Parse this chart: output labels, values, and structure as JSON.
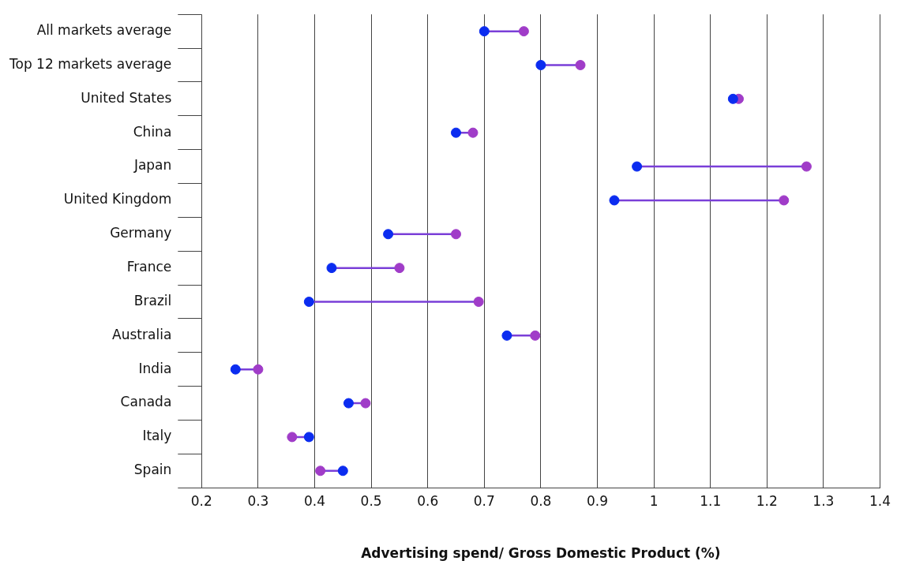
{
  "chart_data": {
    "type": "scatter",
    "orientation": "horizontal",
    "xlabel": "Advertising spend/ Gross Domestic Product (%)",
    "categories": [
      "All markets average",
      "Top 12 markets average",
      "United States",
      "China",
      "Japan",
      "United Kingdom",
      "Germany",
      "France",
      "Brazil",
      "Australia",
      "India",
      "Canada",
      "Italy",
      "Spain"
    ],
    "series": [
      {
        "color": "#0b2cf0",
        "values": [
          0.7,
          0.8,
          1.14,
          0.65,
          0.97,
          0.93,
          0.53,
          0.43,
          0.39,
          0.74,
          0.26,
          0.46,
          0.39,
          0.45
        ]
      },
      {
        "color": "#a03cc8",
        "values": [
          0.77,
          0.87,
          1.15,
          0.68,
          1.27,
          1.23,
          0.65,
          0.55,
          0.69,
          0.79,
          0.3,
          0.49,
          0.36,
          0.41
        ]
      }
    ],
    "xlim": [
      0.2,
      1.4
    ],
    "xticks": [
      0.2,
      0.3,
      0.4,
      0.5,
      0.6,
      0.7,
      0.8,
      0.9,
      {
        "value": 1,
        "label": "1"
      },
      1.1,
      1.2,
      1.3,
      1.4
    ],
    "grid": "x",
    "marker": "circle",
    "legend": false
  }
}
